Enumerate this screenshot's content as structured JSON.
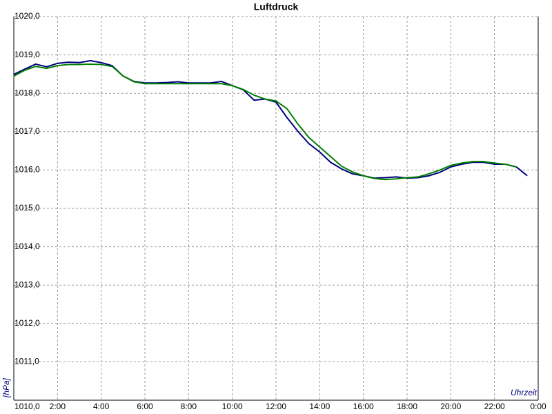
{
  "chart_data": {
    "type": "line",
    "title": "Luftdruck",
    "y_label": "[hPa]",
    "x_label": "Uhrzeit",
    "x": [
      0,
      0.5,
      1,
      1.5,
      2,
      2.5,
      3,
      3.5,
      4,
      4.5,
      5,
      5.5,
      6,
      6.5,
      7,
      7.5,
      8,
      8.5,
      9,
      9.5,
      10,
      10.5,
      11,
      11.5,
      12,
      12.5,
      13,
      13.5,
      14,
      14.5,
      15,
      15.5,
      16,
      16.5,
      17,
      17.5,
      18,
      18.5,
      19,
      19.5,
      20,
      20.5,
      21,
      21.5,
      22,
      22.5,
      23,
      23.5
    ],
    "series": [
      {
        "color": "#000080",
        "values": [
          1018.49,
          1018.63,
          1018.76,
          1018.69,
          1018.78,
          1018.81,
          1018.8,
          1018.85,
          1018.8,
          1018.72,
          1018.45,
          1018.31,
          1018.27,
          1018.27,
          1018.28,
          1018.3,
          1018.27,
          1018.27,
          1018.27,
          1018.31,
          1018.2,
          1018.09,
          1017.82,
          1017.85,
          1017.77,
          1017.37,
          1017.01,
          1016.69,
          1016.47,
          1016.2,
          1016.03,
          1015.9,
          1015.85,
          1015.79,
          1015.8,
          1015.82,
          1015.79,
          1015.8,
          1015.85,
          1015.94,
          1016.08,
          1016.15,
          1016.2,
          1016.2,
          1016.15,
          1016.15,
          1016.08,
          1015.85
        ]
      },
      {
        "color": "#008000",
        "values": [
          1018.45,
          1018.6,
          1018.7,
          1018.65,
          1018.72,
          1018.75,
          1018.75,
          1018.76,
          1018.75,
          1018.7,
          1018.45,
          1018.3,
          1018.25,
          1018.25,
          1018.25,
          1018.25,
          1018.25,
          1018.25,
          1018.25,
          1018.25,
          1018.2,
          1018.1,
          1017.95,
          1017.85,
          1017.8,
          1017.6,
          1017.2,
          1016.85,
          1016.6,
          1016.35,
          1016.1,
          1015.95,
          1015.85,
          1015.78,
          1015.75,
          1015.77,
          1015.8,
          1015.82,
          1015.9,
          1016.0,
          1016.12,
          1016.18,
          1016.22,
          1016.22,
          1016.18,
          1016.15,
          1016.08,
          null
        ]
      }
    ],
    "xlim": [
      0,
      24
    ],
    "xticks": [
      {
        "value": 2,
        "label": "2:00"
      },
      {
        "value": 4,
        "label": "4:00"
      },
      {
        "value": 6,
        "label": "6:00"
      },
      {
        "value": 8,
        "label": "8:00"
      },
      {
        "value": 10,
        "label": "10:00"
      },
      {
        "value": 12,
        "label": "12:00"
      },
      {
        "value": 14,
        "label": "14:00"
      },
      {
        "value": 16,
        "label": "16:00"
      },
      {
        "value": 18,
        "label": "18:00"
      },
      {
        "value": 20,
        "label": "20:00"
      },
      {
        "value": 22,
        "label": "22:00"
      },
      {
        "value": 24,
        "label": "0:00"
      }
    ],
    "ylim": [
      1010,
      1020
    ],
    "yticks": [
      {
        "value": 1010,
        "label": "1010,0"
      },
      {
        "value": 1011,
        "label": "1011,0"
      },
      {
        "value": 1012,
        "label": "1012,0"
      },
      {
        "value": 1013,
        "label": "1013,0"
      },
      {
        "value": 1014,
        "label": "1014,0"
      },
      {
        "value": 1015,
        "label": "1015,0"
      },
      {
        "value": 1016,
        "label": "1016,0"
      },
      {
        "value": 1017,
        "label": "1017,0"
      },
      {
        "value": 1018,
        "label": "1018,0"
      },
      {
        "value": 1019,
        "label": "1019,0"
      },
      {
        "value": 1020,
        "label": "1020,0"
      }
    ],
    "grid": true
  }
}
